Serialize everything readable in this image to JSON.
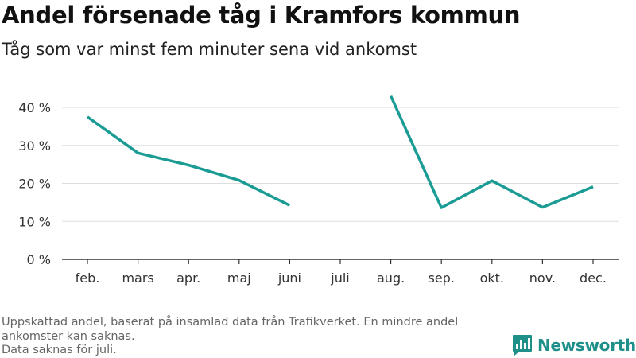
{
  "title": "Andel försenade tåg i Kramfors kommun",
  "subtitle": "Tåg som var minst fem minuter sena vid ankomst",
  "notes": [
    "Uppskattad andel, baserat på insamlad data från Trafikverket. En mindre andel ankomster kan saknas.",
    "Data saknas för juli."
  ],
  "logo": {
    "name": "Newsworthy"
  },
  "colors": {
    "line": "#1a9c95",
    "grid": "#dddddd",
    "axis": "#333333",
    "logo": "#1f8f8a"
  },
  "chart_data": {
    "type": "line",
    "categories": [
      "feb.",
      "mars",
      "apr.",
      "maj",
      "juni",
      "juli",
      "aug.",
      "sep.",
      "okt.",
      "nov.",
      "dec."
    ],
    "series": [
      {
        "values": [
          37.5,
          28,
          24.8,
          20.8,
          14.2,
          null,
          43,
          13.6,
          20.7,
          13.7,
          19.1
        ]
      }
    ],
    "ylim": [
      0,
      40
    ],
    "yticks": [
      0,
      10,
      20,
      30,
      40
    ],
    "ytick_labels": [
      "0 %",
      "10 %",
      "20 %",
      "30 %",
      "40 %"
    ],
    "grid": true,
    "xlabel": "",
    "ylabel": ""
  }
}
